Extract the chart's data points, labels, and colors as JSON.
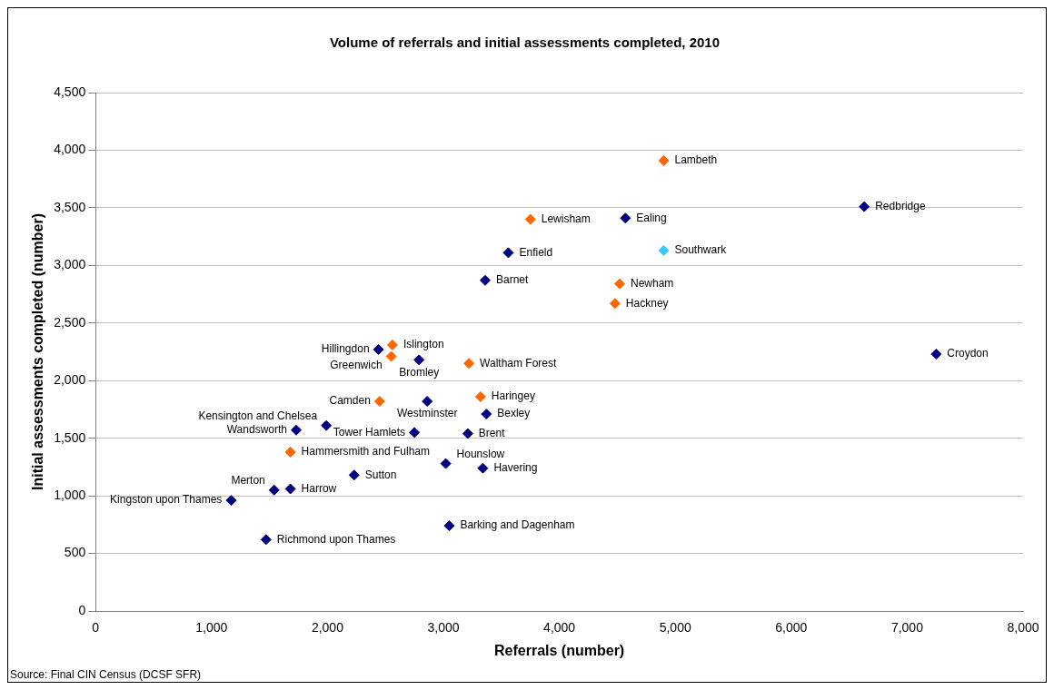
{
  "chart_data": {
    "type": "scatter",
    "title": "Volume of referrals and initial assessments completed, 2010",
    "xlabel": "Referrals (number)",
    "ylabel": "Initial assessments completed (number)",
    "xlim": [
      0,
      8000
    ],
    "xticks": [
      {
        "value": 0,
        "label": "0"
      },
      {
        "value": 1000,
        "label": "1,000"
      },
      {
        "value": 2000,
        "label": "2,000"
      },
      {
        "value": 3000,
        "label": "3,000"
      },
      {
        "value": 4000,
        "label": "4,000"
      },
      {
        "value": 5000,
        "label": "5,000"
      },
      {
        "value": 6000,
        "label": "6,000"
      },
      {
        "value": 7000,
        "label": "7,000"
      },
      {
        "value": 8000,
        "label": "8,000"
      }
    ],
    "ylim": [
      0,
      4500
    ],
    "yticks": [
      {
        "value": 0,
        "label": "0"
      },
      {
        "value": 500,
        "label": "500"
      },
      {
        "value": 1000,
        "label": "1,000"
      },
      {
        "value": 1500,
        "label": "1,500"
      },
      {
        "value": 2000,
        "label": "2,000"
      },
      {
        "value": 2500,
        "label": "2,500"
      },
      {
        "value": 3000,
        "label": "3,000"
      },
      {
        "value": 3500,
        "label": "3,500"
      },
      {
        "value": 4000,
        "label": "4,000"
      },
      {
        "value": 4500,
        "label": "4,500"
      }
    ],
    "grid": "y",
    "marker": "diamond",
    "legend": false,
    "series": [
      {
        "x": [
          4900,
          6630,
          3750,
          4570,
          3560,
          4900,
          3360,
          4520,
          4480,
          7250,
          2440,
          2560,
          2550,
          2790,
          3220,
          2450,
          2860,
          3320,
          3370,
          1990,
          1730,
          2750,
          3210,
          1680,
          3020,
          3340,
          2230,
          1540,
          1680,
          1170,
          3050,
          1470
        ],
        "values": [
          3910,
          3510,
          3400,
          3410,
          3110,
          3130,
          2870,
          2840,
          2670,
          2230,
          2270,
          2310,
          2210,
          2180,
          2150,
          1820,
          1820,
          1860,
          1710,
          1610,
          1570,
          1550,
          1540,
          1380,
          1280,
          1240,
          1180,
          1050,
          1060,
          960,
          740,
          620
        ],
        "colors": [
          "#ff6600",
          "#000080",
          "#ff6600",
          "#000080",
          "#000080",
          "#33ccff",
          "#000080",
          "#ff6600",
          "#ff6600",
          "#000080",
          "#000080",
          "#ff6600",
          "#ff6600",
          "#000080",
          "#ff6600",
          "#ff6600",
          "#000080",
          "#ff6600",
          "#000080",
          "#000080",
          "#000080",
          "#000080",
          "#000080",
          "#ff6600",
          "#000080",
          "#000080",
          "#000080",
          "#000080",
          "#000080",
          "#000080",
          "#000080",
          "#000080"
        ]
      }
    ],
    "annotations": [
      {
        "text": "Lambeth",
        "x": 4900,
        "y": 3910
      },
      {
        "text": "Redbridge",
        "x": 6630,
        "y": 3510
      },
      {
        "text": "Lewisham",
        "x": 3750,
        "y": 3400
      },
      {
        "text": "Ealing",
        "x": 4570,
        "y": 3410
      },
      {
        "text": "Enfield",
        "x": 3560,
        "y": 3110
      },
      {
        "text": "Southwark",
        "x": 4900,
        "y": 3130
      },
      {
        "text": "Barnet",
        "x": 3360,
        "y": 2870
      },
      {
        "text": "Newham",
        "x": 4520,
        "y": 2840
      },
      {
        "text": "Hackney",
        "x": 4480,
        "y": 2670
      },
      {
        "text": "Croydon",
        "x": 7250,
        "y": 2230
      },
      {
        "text": "Hillingdon",
        "x": 2440,
        "y": 2270
      },
      {
        "text": "Islington",
        "x": 2560,
        "y": 2310
      },
      {
        "text": "Greenwich",
        "x": 2550,
        "y": 2210
      },
      {
        "text": "Bromley",
        "x": 2790,
        "y": 2180
      },
      {
        "text": "Waltham Forest",
        "x": 3220,
        "y": 2150
      },
      {
        "text": "Camden",
        "x": 2450,
        "y": 1820
      },
      {
        "text": "Westminster",
        "x": 2860,
        "y": 1820
      },
      {
        "text": "Haringey",
        "x": 3320,
        "y": 1860
      },
      {
        "text": "Bexley",
        "x": 3370,
        "y": 1710
      },
      {
        "text": "Kensington and Chelsea",
        "x": 1990,
        "y": 1610
      },
      {
        "text": "Wandsworth",
        "x": 1730,
        "y": 1570
      },
      {
        "text": "Tower Hamlets",
        "x": 2750,
        "y": 1550
      },
      {
        "text": "Brent",
        "x": 3210,
        "y": 1540
      },
      {
        "text": "Hammersmith and Fulham",
        "x": 1680,
        "y": 1380
      },
      {
        "text": "Hounslow",
        "x": 3020,
        "y": 1280
      },
      {
        "text": "Havering",
        "x": 3340,
        "y": 1240
      },
      {
        "text": "Sutton",
        "x": 2230,
        "y": 1180
      },
      {
        "text": "Merton",
        "x": 1540,
        "y": 1050
      },
      {
        "text": "Harrow",
        "x": 1680,
        "y": 1060
      },
      {
        "text": "Kingston upon Thames",
        "x": 1170,
        "y": 960
      },
      {
        "text": "Barking and Dagenham",
        "x": 3050,
        "y": 740
      },
      {
        "text": "Richmond upon Thames",
        "x": 1470,
        "y": 620
      },
      "Source: Final CIN Census (DCSF SFR)"
    ]
  }
}
